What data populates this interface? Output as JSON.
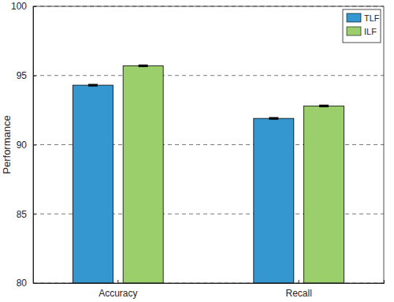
{
  "chart_data": {
    "type": "bar",
    "categories": [
      "Accuracy",
      "Recall"
    ],
    "series": [
      {
        "name": "TLF",
        "color": "#3597cf",
        "values": [
          94.3,
          91.9
        ],
        "errors": [
          0.05,
          0.05
        ]
      },
      {
        "name": "ILF",
        "color": "#9bcf6b",
        "values": [
          95.7,
          92.8
        ],
        "errors": [
          0.05,
          0.05
        ]
      }
    ],
    "y_label": "Performance",
    "ylim": [
      80,
      100
    ],
    "yticks": [
      80,
      85,
      90,
      95,
      100
    ],
    "grid": true,
    "legend": "top-right"
  }
}
